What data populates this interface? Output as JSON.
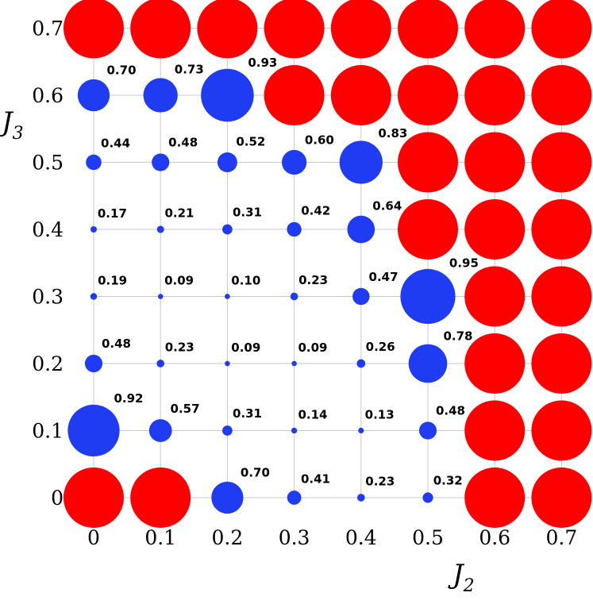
{
  "chart_data": {
    "type": "scatter",
    "xlabel": "J",
    "xlabel_sub": "2",
    "ylabel": "J",
    "ylabel_sub": "3",
    "x_ticks": [
      "0",
      "0.1",
      "0.2",
      "0.3",
      "0.4",
      "0.5",
      "0.6",
      "0.7"
    ],
    "y_ticks": [
      "0",
      "0.1",
      "0.2",
      "0.3",
      "0.4",
      "0.5",
      "0.6",
      "0.7"
    ],
    "x": [
      0,
      0.1,
      0.2,
      0.3,
      0.4,
      0.5,
      0.6,
      0.7
    ],
    "y": [
      0,
      0.1,
      0.2,
      0.3,
      0.4,
      0.5,
      0.6,
      0.7
    ],
    "grid": true,
    "colors": {
      "blue": "#1f3cf2",
      "red": "#ff0000"
    },
    "rows": [
      {
        "y": 0,
        "values": [
          "red",
          "red",
          0.7,
          0.41,
          0.23,
          0.32,
          "red",
          "red"
        ],
        "labels": [
          "",
          "",
          "0.70",
          "0.41",
          "0.23",
          "0.32",
          "",
          ""
        ]
      },
      {
        "y": 0.1,
        "values": [
          0.92,
          0.57,
          0.31,
          0.14,
          0.13,
          0.48,
          "red",
          "red"
        ],
        "labels": [
          "0.92",
          "0.57",
          "0.31",
          "0.14",
          "0.13",
          "0.48",
          "",
          ""
        ]
      },
      {
        "y": 0.2,
        "values": [
          0.48,
          0.23,
          0.09,
          0.09,
          0.26,
          0.78,
          "red",
          "red"
        ],
        "labels": [
          "0.48",
          "0.23",
          "0.09",
          "0.09",
          "0.26",
          "0.78",
          "",
          ""
        ]
      },
      {
        "y": 0.3,
        "values": [
          0.19,
          0.09,
          0.1,
          0.23,
          0.47,
          0.95,
          "red",
          "red"
        ],
        "labels": [
          "0.19",
          "0.09",
          "0.10",
          "0.23",
          "0.47",
          "0.95",
          "",
          ""
        ]
      },
      {
        "y": 0.4,
        "values": [
          0.17,
          0.21,
          0.31,
          0.42,
          0.64,
          "red",
          "red",
          "red"
        ],
        "labels": [
          "0.17",
          "0.21",
          "0.31",
          "0.42",
          "0.64",
          "",
          "",
          ""
        ]
      },
      {
        "y": 0.5,
        "values": [
          0.44,
          0.48,
          0.52,
          0.6,
          0.83,
          "red",
          "red",
          "red"
        ],
        "labels": [
          "0.44",
          "0.48",
          "0.52",
          "0.60",
          "0.83",
          "",
          "",
          ""
        ]
      },
      {
        "y": 0.6,
        "values": [
          0.7,
          0.73,
          0.93,
          "red",
          "red",
          "red",
          "red",
          "red"
        ],
        "labels": [
          "0.70",
          "0.73",
          "0.93",
          "",
          "",
          "",
          "",
          ""
        ]
      },
      {
        "y": 0.7,
        "values": [
          "red",
          "red",
          "red",
          "red",
          "red",
          "red",
          "red",
          "red"
        ],
        "labels": [
          "",
          "",
          "",
          "",
          "",
          "",
          "",
          ""
        ]
      }
    ]
  }
}
